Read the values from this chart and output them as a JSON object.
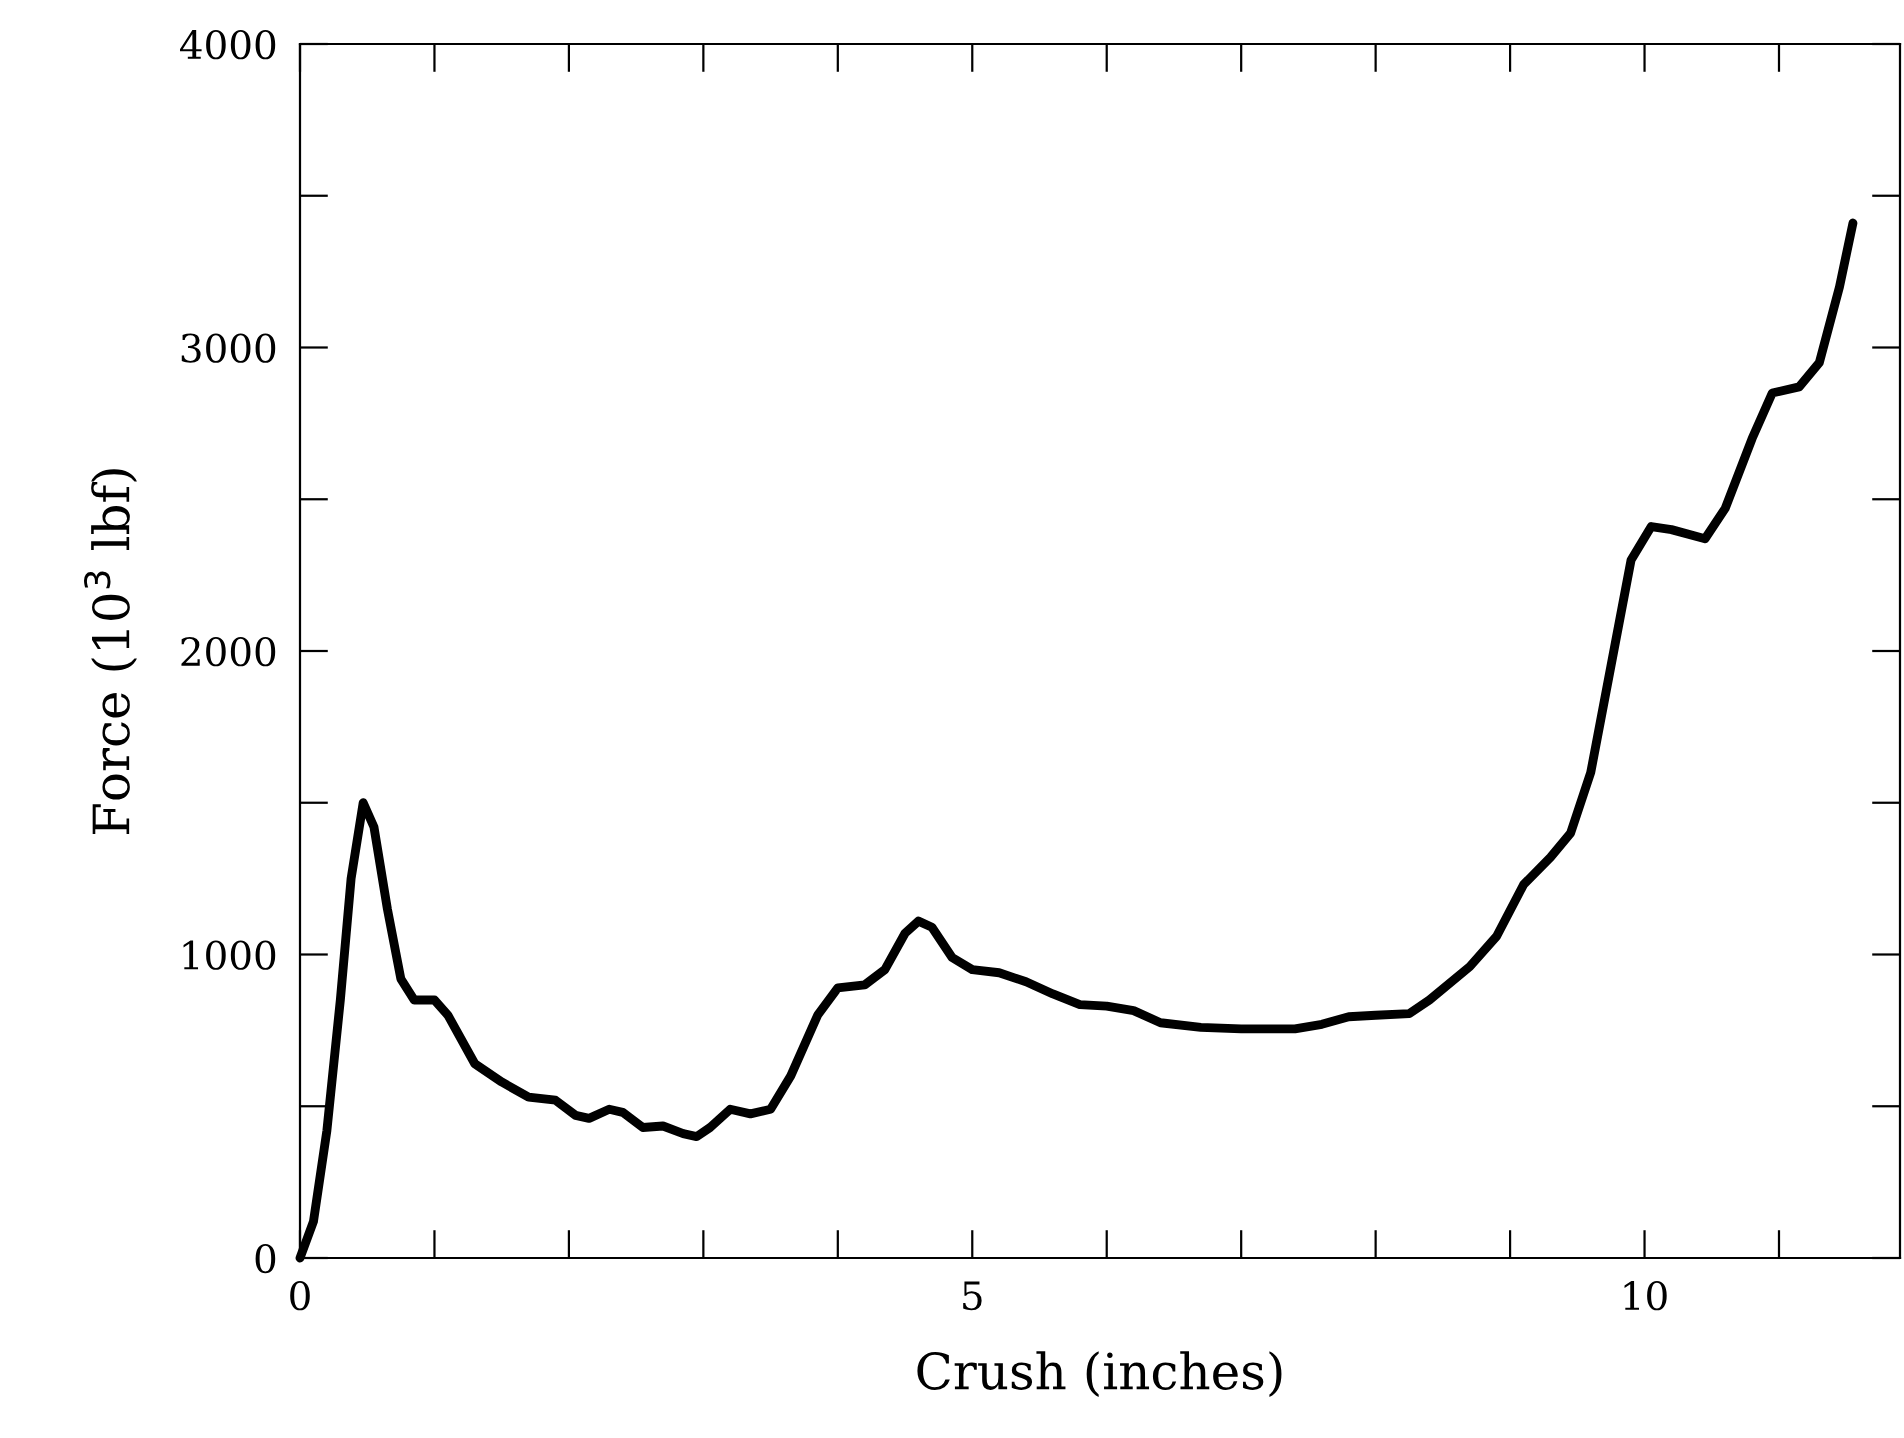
{
  "chart_data": {
    "type": "line",
    "xlabel": "Crush (inches)",
    "ylabel": "Force (10$^{3}$ lbf)",
    "xlim": [
      0,
      11.9
    ],
    "ylim": [
      0,
      4000
    ],
    "xticks": [
      0,
      {
        "value": 1,
        "label": null
      },
      {
        "value": 2,
        "label": null
      },
      {
        "value": 3,
        "label": null
      },
      {
        "value": 4,
        "label": null
      },
      5,
      {
        "value": 6,
        "label": null
      },
      {
        "value": 7,
        "label": null
      },
      {
        "value": 8,
        "label": null
      },
      {
        "value": 9,
        "label": null
      },
      10,
      {
        "value": 11,
        "label": null
      }
    ],
    "yticks": [
      0,
      {
        "value": 500,
        "label": null
      },
      1000,
      {
        "value": 1500,
        "label": null
      },
      2000,
      {
        "value": 2500,
        "label": null
      },
      3000,
      {
        "value": 3500,
        "label": null
      },
      4000
    ],
    "grid": false,
    "marker": "none",
    "line_style": "solid",
    "series": [
      {
        "color": "#000000",
        "x": [
          0,
          0.1,
          0.2,
          0.3,
          0.38,
          0.47,
          0.55,
          0.65,
          0.75,
          0.85,
          1.0,
          1.1,
          1.3,
          1.5,
          1.7,
          1.9,
          2.05,
          2.15,
          2.3,
          2.4,
          2.55,
          2.7,
          2.85,
          2.95,
          3.05,
          3.2,
          3.35,
          3.5,
          3.65,
          3.85,
          4.0,
          4.2,
          4.35,
          4.5,
          4.6,
          4.7,
          4.85,
          5.0,
          5.2,
          5.4,
          5.6,
          5.8,
          6.0,
          6.2,
          6.4,
          6.7,
          7.0,
          7.4,
          7.6,
          7.8,
          8.0,
          8.25,
          8.4,
          8.7,
          8.9,
          9.1,
          9.3,
          9.45,
          9.6,
          9.75,
          9.9,
          10.05,
          10.2,
          10.45,
          10.6,
          10.8,
          10.95,
          11.15,
          11.3,
          11.45,
          11.55
        ],
        "values": [
          0,
          120,
          420,
          850,
          1250,
          1500,
          1420,
          1150,
          920,
          850,
          850,
          800,
          640,
          580,
          530,
          520,
          470,
          460,
          490,
          480,
          430,
          435,
          410,
          400,
          430,
          490,
          475,
          490,
          600,
          800,
          890,
          900,
          950,
          1070,
          1110,
          1090,
          990,
          950,
          940,
          910,
          870,
          835,
          830,
          815,
          775,
          760,
          755,
          755,
          770,
          795,
          800,
          805,
          850,
          960,
          1060,
          1230,
          1320,
          1400,
          1600,
          1950,
          2300,
          2410,
          2400,
          2370,
          2470,
          2700,
          2850,
          2870,
          2950,
          3200,
          3410
        ]
      }
    ]
  }
}
